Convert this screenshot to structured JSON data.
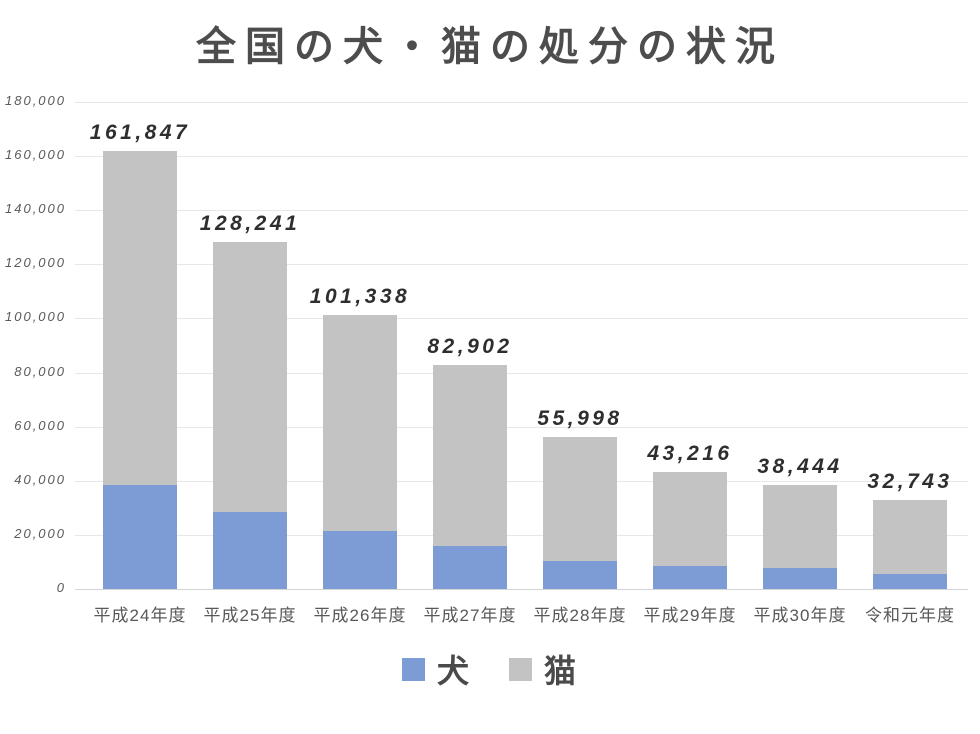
{
  "title": "全国の犬・猫の処分の状況",
  "chart_data": {
    "type": "bar",
    "stacked": true,
    "title": "全国の犬・猫の処分の状況",
    "categories": [
      "平成24年度",
      "平成25年度",
      "平成26年度",
      "平成27年度",
      "平成28年度",
      "平成29年度",
      "平成30年度",
      "令和元年度"
    ],
    "series": [
      {
        "name": "犬",
        "color": "#7d9bd5",
        "values": [
          38447,
          28570,
          21593,
          15811,
          10424,
          8362,
          7687,
          5635
        ]
      },
      {
        "name": "猫",
        "color": "#c3c3c3",
        "values": [
          123400,
          99671,
          79745,
          67091,
          45574,
          34854,
          30757,
          27108
        ]
      }
    ],
    "totals": [
      161847,
      128241,
      101338,
      82902,
      55998,
      43216,
      38444,
      32743
    ],
    "total_labels": [
      "161,847",
      "128,241",
      "101,338",
      "82,902",
      "55,998",
      "43,216",
      "38,444",
      "32,743"
    ],
    "y_axis": {
      "min": 0,
      "max": 180000,
      "step": 20000,
      "tick_labels": [
        "0",
        "20,000",
        "40,000",
        "60,000",
        "80,000",
        "100,000",
        "120,000",
        "140,000",
        "160,000",
        "180,000"
      ]
    },
    "grid": true,
    "legend_position": "bottom",
    "colors": {
      "title_text": "#4d4d4d",
      "axis_text": "#595959",
      "data_label_text": "#2e2e2e",
      "gridline": "#e7e7e7",
      "background": "#ffffff"
    }
  }
}
